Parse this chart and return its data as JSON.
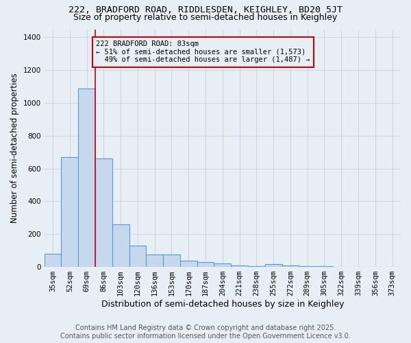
{
  "title1": "222, BRADFORD ROAD, RIDDLESDEN, KEIGHLEY, BD20 5JT",
  "title2": "Size of property relative to semi-detached houses in Keighley",
  "xlabel": "Distribution of semi-detached houses by size in Keighley",
  "ylabel": "Number of semi-detached properties",
  "categories": [
    "35sqm",
    "52sqm",
    "69sqm",
    "86sqm",
    "103sqm",
    "120sqm",
    "136sqm",
    "153sqm",
    "170sqm",
    "187sqm",
    "204sqm",
    "221sqm",
    "238sqm",
    "255sqm",
    "272sqm",
    "289sqm",
    "305sqm",
    "322sqm",
    "339sqm",
    "356sqm",
    "373sqm"
  ],
  "values": [
    80,
    670,
    1090,
    660,
    260,
    130,
    75,
    75,
    38,
    28,
    22,
    10,
    5,
    15,
    8,
    5,
    3,
    2,
    2,
    1,
    1
  ],
  "bar_color": "#c5d8ed",
  "bar_edge_color": "#5b9bd5",
  "bar_linewidth": 0.8,
  "grid_color": "#c8d4e3",
  "background_color": "#e8eef5",
  "property_label": "222 BRADFORD ROAD: 83sqm",
  "pct_smaller": 51,
  "n_smaller": 1573,
  "pct_larger": 49,
  "n_larger": 1487,
  "redline_color": "#cc0000",
  "redline_x": 2.5,
  "ylim": [
    0,
    1450
  ],
  "yticks": [
    0,
    200,
    400,
    600,
    800,
    1000,
    1200,
    1400
  ],
  "footer1": "Contains HM Land Registry data © Crown copyright and database right 2025.",
  "footer2": "Contains public sector information licensed under the Open Government Licence v3.0.",
  "title1_fontsize": 9.5,
  "title2_fontsize": 9,
  "tick_fontsize": 7.5,
  "xlabel_fontsize": 9,
  "ylabel_fontsize": 8.5,
  "footer_fontsize": 7,
  "ann_fontsize": 7.5
}
